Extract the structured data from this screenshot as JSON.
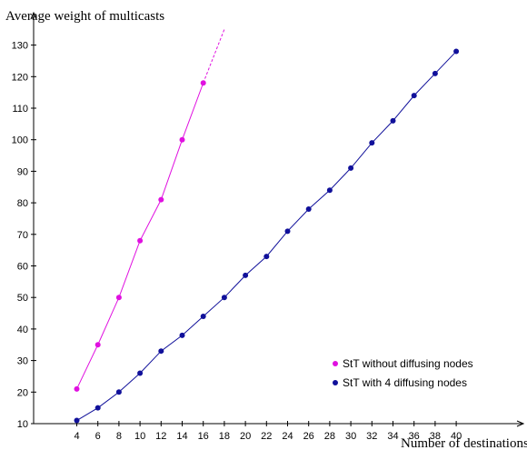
{
  "chart_data": {
    "type": "line",
    "title": "",
    "ylabel": "Average weight of multicasts",
    "xlabel": "Number of destinations",
    "xlim": [
      0.4,
      42.5
    ],
    "ylim": [
      10,
      134
    ],
    "xticks": [
      4,
      6,
      8,
      10,
      12,
      14,
      16,
      18,
      20,
      22,
      24,
      26,
      28,
      30,
      32,
      34,
      36,
      38,
      40
    ],
    "yticks": [
      10,
      20,
      30,
      40,
      50,
      60,
      70,
      80,
      90,
      100,
      110,
      120,
      130
    ],
    "grid": false,
    "legend_position": "bottom-right",
    "series": [
      {
        "name": "StT without diffusing nodes",
        "color": "#e010e0",
        "x": [
          4,
          6,
          8,
          10,
          12,
          14,
          16
        ],
        "y": [
          21,
          35,
          50,
          68,
          81,
          100,
          118
        ],
        "extrapolation": {
          "x": [
            16,
            18
          ],
          "y": [
            118,
            135
          ],
          "style": "dashed"
        }
      },
      {
        "name": "StT with 4 diffusing nodes",
        "color": "#10109a",
        "x": [
          4,
          6,
          8,
          10,
          12,
          14,
          16,
          18,
          20,
          22,
          24,
          26,
          28,
          30,
          32,
          34,
          36,
          38,
          40
        ],
        "y": [
          11,
          15,
          20,
          26,
          33,
          38,
          44,
          50,
          57,
          63,
          71,
          78,
          84,
          91,
          99,
          106,
          114,
          121,
          128
        ]
      }
    ]
  }
}
